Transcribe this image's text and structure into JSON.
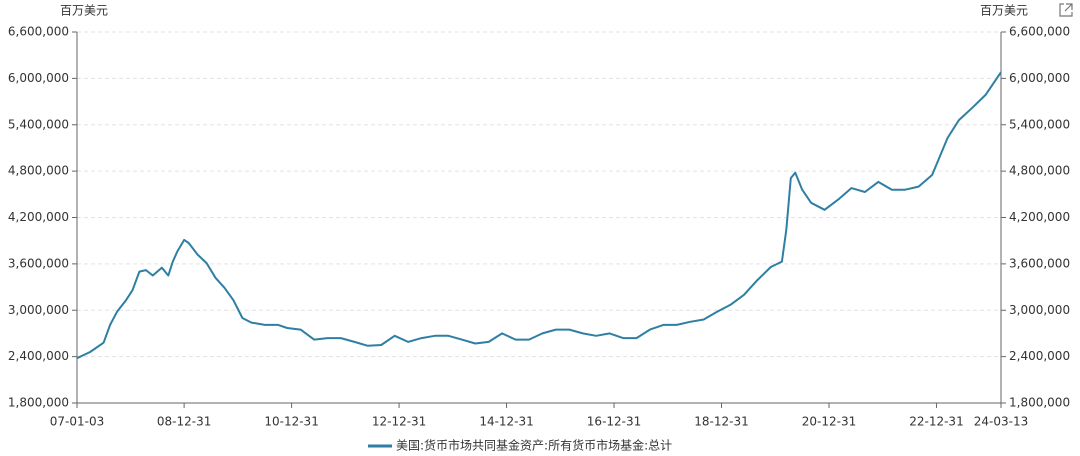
{
  "chart_data": {
    "type": "line",
    "unit_left": "百万美元",
    "unit_right": "百万美元",
    "x": [
      "07-01-03",
      "07-04-01",
      "07-07-01",
      "07-08-15",
      "07-10-01",
      "07-12-01",
      "08-01-15",
      "08-03-01",
      "08-04-15",
      "08-06-01",
      "08-08-01",
      "08-09-15",
      "08-10-15",
      "08-11-15",
      "09-01-01",
      "09-02-01",
      "09-04-01",
      "09-06-01",
      "09-08-01",
      "09-10-01",
      "09-12-01",
      "10-02-01",
      "10-04-01",
      "10-07-01",
      "10-10-01",
      "10-12-01",
      "11-03-01",
      "11-06-01",
      "11-09-01",
      "11-12-01",
      "12-03-01",
      "12-06-01",
      "12-09-01",
      "12-12-01",
      "13-03-01",
      "13-06-01",
      "13-09-01",
      "13-12-01",
      "14-03-01",
      "14-06-01",
      "14-09-01",
      "14-12-01",
      "15-03-01",
      "15-06-01",
      "15-09-01",
      "15-12-01",
      "16-03-01",
      "16-06-01",
      "16-09-01",
      "16-12-01",
      "17-03-01",
      "17-06-01",
      "17-09-01",
      "17-12-01",
      "18-03-01",
      "18-06-01",
      "18-09-01",
      "18-12-01",
      "19-03-01",
      "19-06-01",
      "19-09-01",
      "19-12-01",
      "20-02-15",
      "20-03-15",
      "20-04-15",
      "20-05-15",
      "20-07-01",
      "20-09-01",
      "20-12-01",
      "21-03-01",
      "21-06-01",
      "21-09-01",
      "21-12-01",
      "22-03-01",
      "22-06-01",
      "22-09-01",
      "22-12-01",
      "23-03-15",
      "23-06-01",
      "23-09-01",
      "23-12-01",
      "24-03-13"
    ],
    "series": [
      {
        "name": "美国:货币市场共同基金资产:所有货币市场基金:总计",
        "color": "#2e7fa3",
        "values": [
          2380000,
          2460000,
          2580000,
          2810000,
          2980000,
          3130000,
          3260000,
          3500000,
          3520000,
          3450000,
          3550000,
          3450000,
          3630000,
          3760000,
          3910000,
          3870000,
          3720000,
          3610000,
          3420000,
          3290000,
          3130000,
          2900000,
          2840000,
          2810000,
          2810000,
          2770000,
          2750000,
          2620000,
          2640000,
          2640000,
          2590000,
          2540000,
          2550000,
          2670000,
          2590000,
          2640000,
          2670000,
          2670000,
          2620000,
          2570000,
          2590000,
          2700000,
          2620000,
          2620000,
          2700000,
          2750000,
          2750000,
          2700000,
          2670000,
          2700000,
          2640000,
          2640000,
          2750000,
          2810000,
          2810000,
          2850000,
          2880000,
          2980000,
          3070000,
          3200000,
          3390000,
          3560000,
          3630000,
          4040000,
          4710000,
          4780000,
          4560000,
          4390000,
          4300000,
          4430000,
          4580000,
          4530000,
          4660000,
          4560000,
          4560000,
          4600000,
          4750000,
          5230000,
          5460000,
          5620000,
          5790000,
          6080000
        ]
      }
    ],
    "xlim": [
      "07-01-03",
      "24-03-13"
    ],
    "xticks": [
      "07-01-03",
      "08-12-31",
      "10-12-31",
      "12-12-31",
      "14-12-31",
      "16-12-31",
      "18-12-31",
      "20-12-31",
      "22-12-31",
      "24-03-13"
    ],
    "ylim": [
      1800000,
      6600000
    ],
    "yticks": [
      {
        "value": 1800000,
        "label": "1,800,000"
      },
      {
        "value": 2400000,
        "label": "2,400,000"
      },
      {
        "value": 3000000,
        "label": "3,000,000"
      },
      {
        "value": 3600000,
        "label": "3,600,000"
      },
      {
        "value": 4200000,
        "label": "4,200,000"
      },
      {
        "value": 4800000,
        "label": "4,800,000"
      },
      {
        "value": 5400000,
        "label": "5,400,000"
      },
      {
        "value": 6000000,
        "label": "6,000,000"
      },
      {
        "value": 6600000,
        "label": "6,600,000"
      }
    ],
    "y2lim": [
      1800000,
      6600000
    ],
    "y2ticks": [
      {
        "value": 1800000,
        "label": "1,800,000"
      },
      {
        "value": 2400000,
        "label": "2,400,000"
      },
      {
        "value": 3000000,
        "label": "3,000,000"
      },
      {
        "value": 3600000,
        "label": "3,600,000"
      },
      {
        "value": 4200000,
        "label": "4,200,000"
      },
      {
        "value": 4800000,
        "label": "4,800,000"
      },
      {
        "value": 5400000,
        "label": "5,400,000"
      },
      {
        "value": 6000000,
        "label": "6,000,000"
      },
      {
        "value": 6600000,
        "label": "6,600,000"
      }
    ],
    "grid": true
  }
}
